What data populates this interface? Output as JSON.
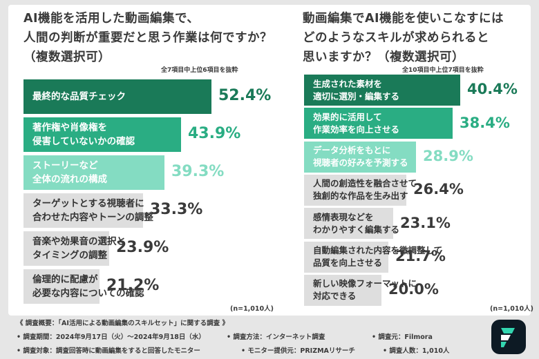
{
  "colors": {
    "tier1": "#1a7a58",
    "tier2": "#2aad83",
    "tier3": "#84dcc2",
    "tier4": "#dedede",
    "logo_bg": "#0d1a24",
    "logo_accent": "#33d6b0"
  },
  "chart_data": [
    {
      "type": "bar",
      "orientation": "horizontal",
      "title_lines": [
        "AI機能を活用した動画編集で、",
        "人間の判断が重要だと思う作業は何ですか？",
        "（複数選択可）"
      ],
      "note": "全7項目中上位6項目を抜粋",
      "sample_note": "(n=1,010人)",
      "unit": "%",
      "categories": [
        [
          "最終的な品質チェック"
        ],
        [
          "著作権や肖像権を",
          "侵害していないかの確認"
        ],
        [
          "ストーリーなど",
          "全体の流れの構成"
        ],
        [
          "ターゲットとする視聴者に",
          "合わせた内容やトーンの調整"
        ],
        [
          "音楽や効果音の選択と",
          "タイミングの調整"
        ],
        [
          "倫理的に配慮が",
          "必要な内容についての確認"
        ]
      ],
      "values": [
        52.4,
        43.9,
        39.3,
        33.3,
        23.9,
        21.2
      ],
      "value_labels": [
        "52.4%",
        "43.9%",
        "39.3%",
        "33.3%",
        "23.9%",
        "21.2%"
      ]
    },
    {
      "type": "bar",
      "orientation": "horizontal",
      "title_lines": [
        "動画編集でAI機能を使いこなすには",
        "どのようなスキルが求められると",
        "思いますか？（複数選択可）"
      ],
      "note": "全10項目中上位7項目を抜粋",
      "sample_note": "(n=1,010人)",
      "unit": "%",
      "categories": [
        [
          "生成された素材を",
          "適切に選別・編集する"
        ],
        [
          "効果的に活用して",
          "作業効率を向上させる"
        ],
        [
          "データ分析をもとに",
          "視聴者の好みを予測する"
        ],
        [
          "人間の創造性を融合させて",
          "独創的な作品を生み出す"
        ],
        [
          "感情表現などを",
          "わかりやすく編集する"
        ],
        [
          "自動編集された内容を微調整して",
          "品質を向上させる"
        ],
        [
          "新しい映像フォーマットに",
          "対応できる"
        ]
      ],
      "values": [
        40.4,
        38.4,
        28.9,
        26.4,
        23.1,
        21.7,
        20.0
      ],
      "value_labels": [
        "40.4%",
        "38.4%",
        "28.9%",
        "26.4%",
        "23.1%",
        "21.7%",
        "20.0%"
      ]
    }
  ],
  "footer": {
    "title": "《 調査概要：「AI活用による動画編集のスキルセット」に関する調査 》",
    "period": "• 調査期間：2024年9月17日（火）〜2024年9月18日（水）",
    "method": "• 調査方法：インターネット調査",
    "source": "• 調査元：Filmora",
    "target": "• 調査対象：調査回答時に動画編集をすると回答したモニター",
    "provider": "• モニター提供元：PRIZMAリサーチ",
    "count": "• 調査人数：1,010人"
  },
  "logo": {
    "icon": "filmora-logo-icon"
  }
}
